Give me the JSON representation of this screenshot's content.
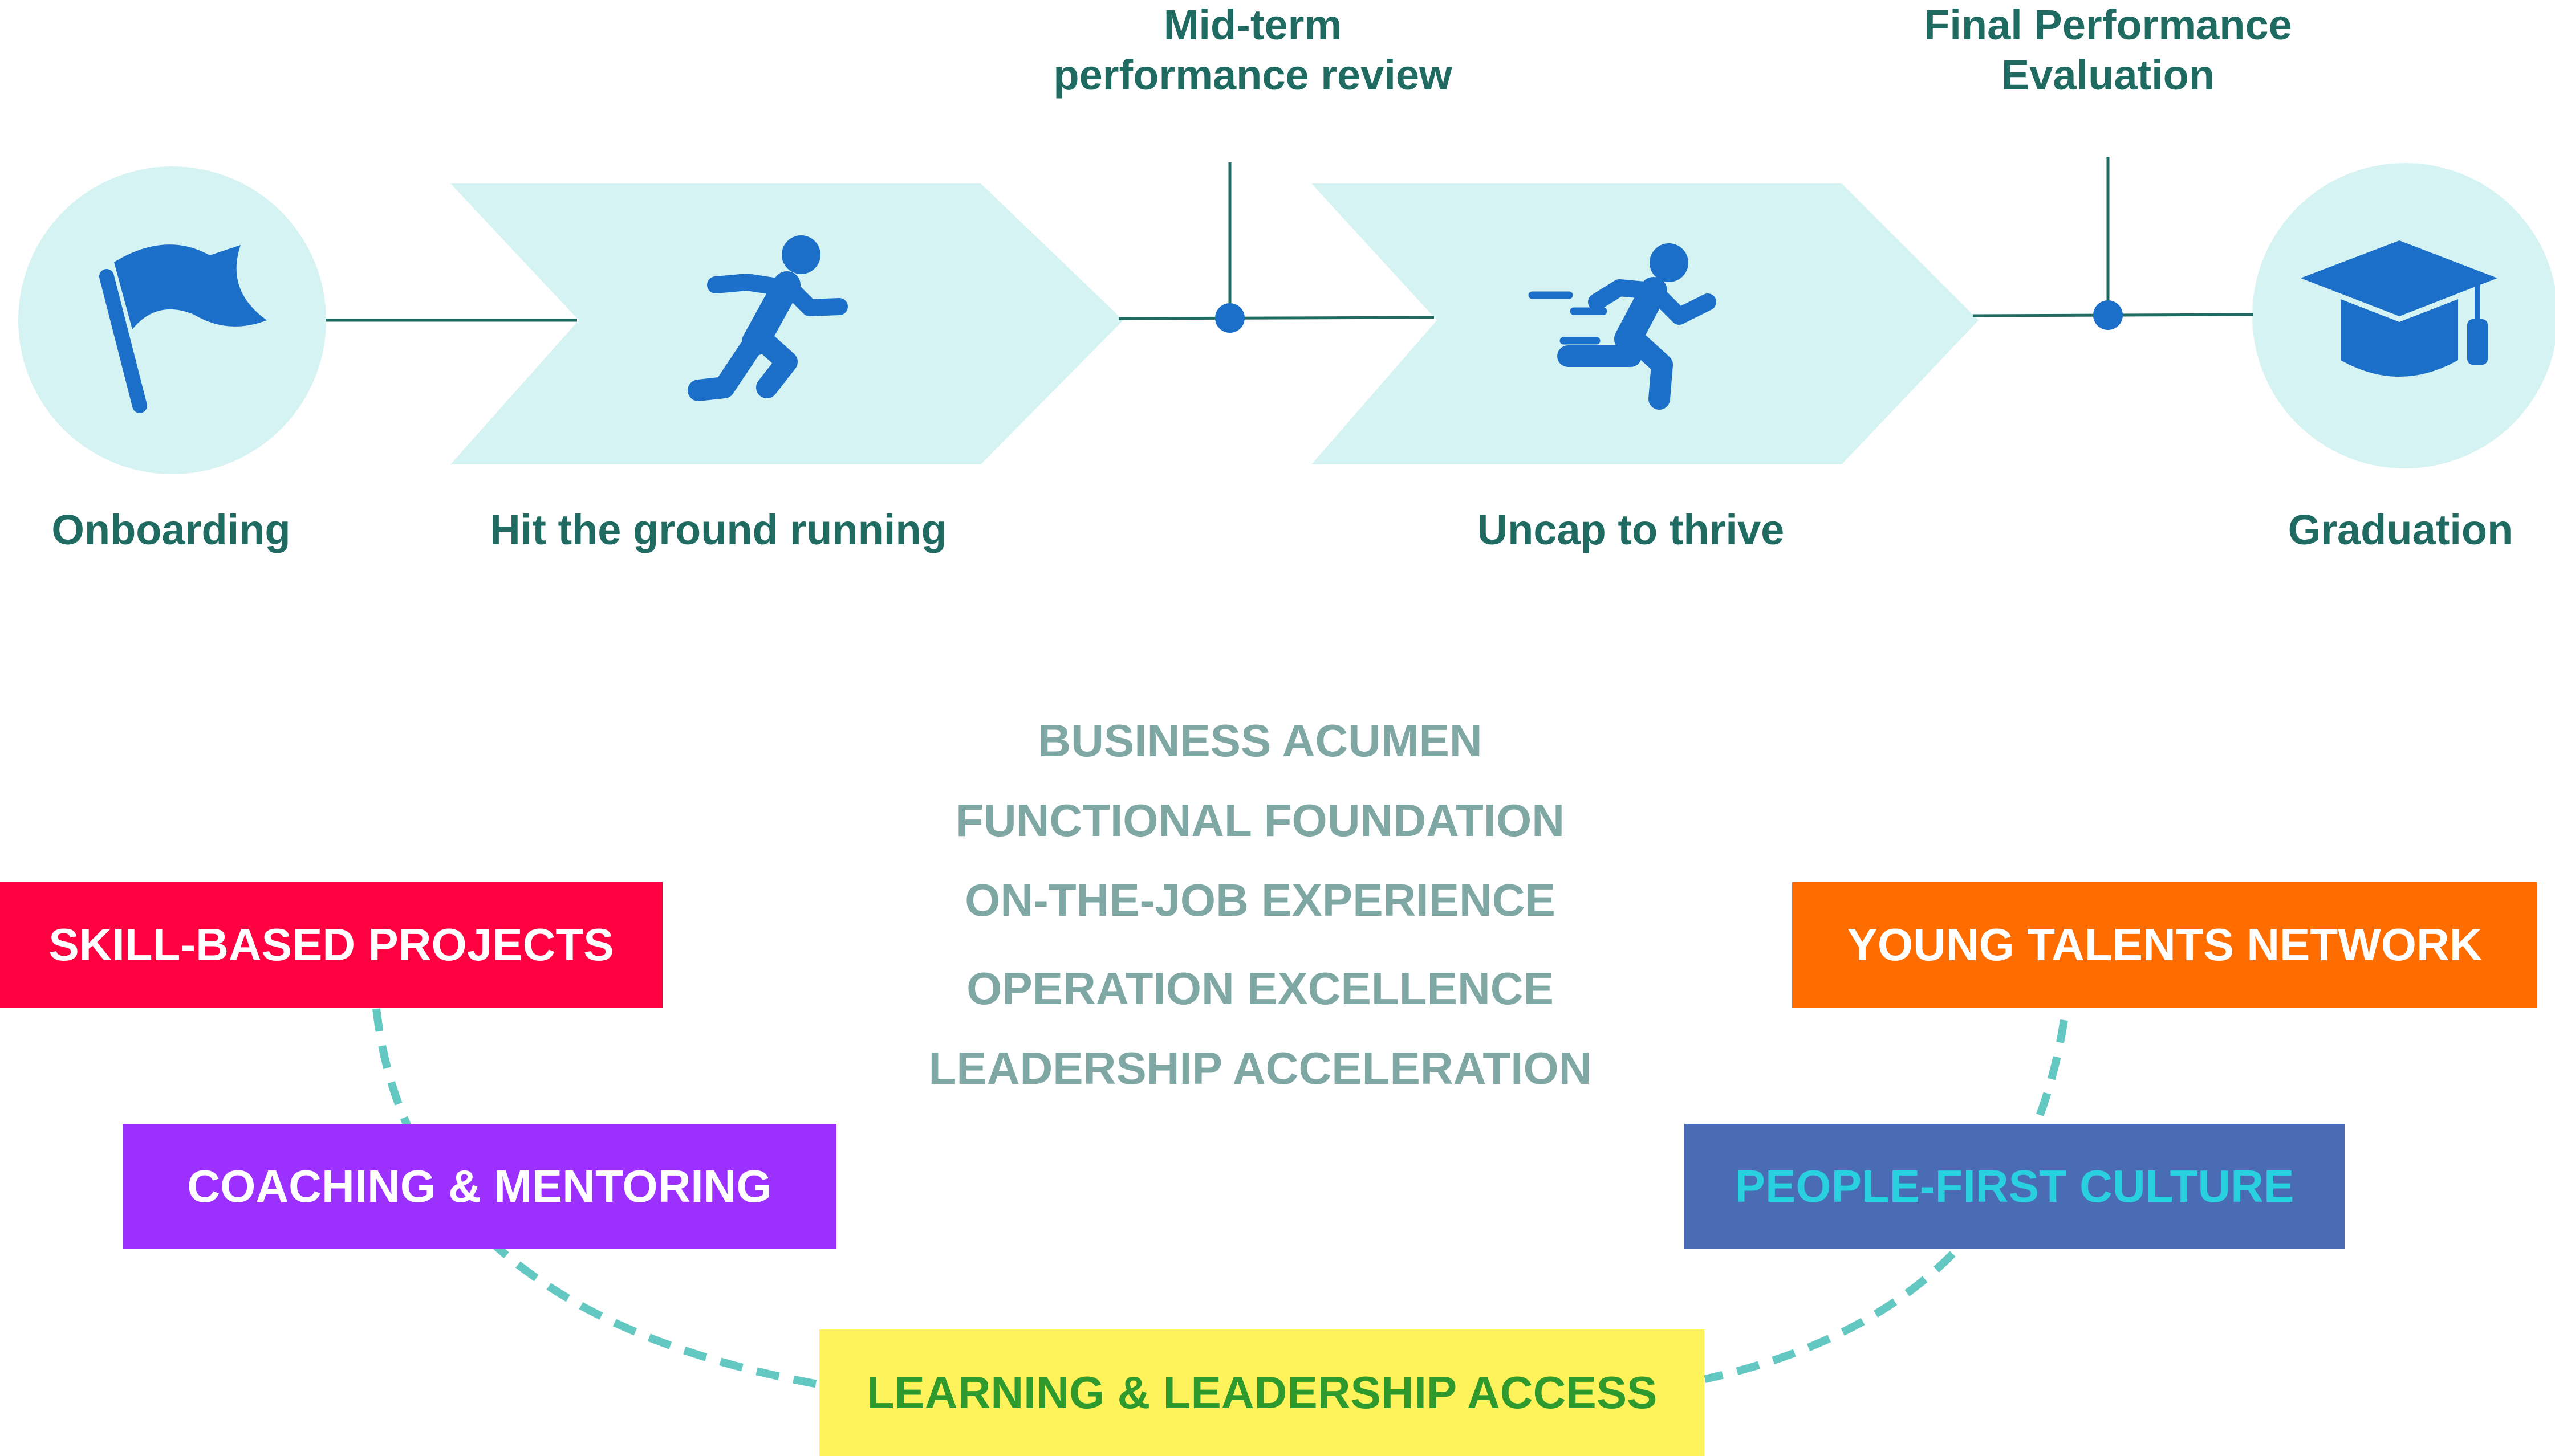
{
  "timeline": {
    "stages": [
      {
        "label": "Onboarding",
        "icon": "flag-icon"
      },
      {
        "label": "Hit the ground running",
        "icon": "running-person-icon"
      },
      {
        "label": "Uncap to thrive",
        "icon": "sprinting-person-icon"
      },
      {
        "label": "Graduation",
        "icon": "graduation-cap-icon"
      }
    ],
    "milestones": [
      {
        "line1": "Mid-term",
        "line2": "performance review"
      },
      {
        "line1": "Final Performance",
        "line2": "Evaluation"
      }
    ]
  },
  "competencies": [
    "BUSINESS ACUMEN",
    "FUNCTIONAL FOUNDATION",
    "ON-THE-JOB EXPERIENCE",
    "OPERATION EXCELLENCE",
    "LEADERSHIP ACCELERATION"
  ],
  "pillars": {
    "skill_projects": {
      "label": "SKILL-BASED PROJECTS",
      "bg": "#ff0040",
      "fg": "#ffffff"
    },
    "coaching": {
      "label": "COACHING & MENTORING",
      "bg": "#9b30ff",
      "fg": "#ffffff"
    },
    "learning": {
      "label": "LEARNING & LEADERSHIP ACCESS",
      "bg": "#fff35c",
      "fg": "#2e9a2e"
    },
    "young_talents": {
      "label": "YOUNG TALENTS NETWORK",
      "bg": "#ff6d00",
      "fg": "#ffffff"
    },
    "people_first": {
      "label": "PEOPLE-FIRST CULTURE",
      "bg": "#4a6cb5",
      "fg": "#29d0e0"
    }
  },
  "colors": {
    "icon_blue": "#1c6fc9",
    "light_teal": "#d6f3f3",
    "connector": "#1f6b62",
    "dash": "#63c7c2",
    "heading_text": "#1f6b62",
    "competency_text": "#7fa8a4"
  }
}
